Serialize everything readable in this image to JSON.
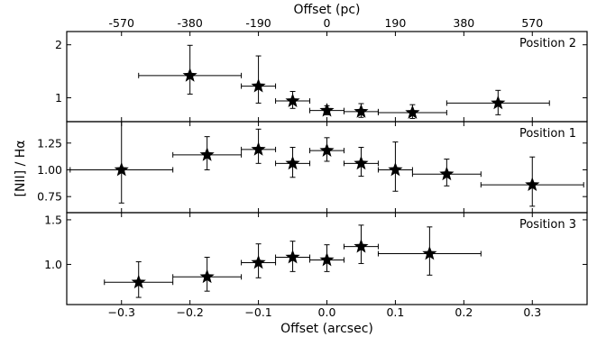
{
  "chart_data": {
    "type": "scatter",
    "xlabel": "Offset (arcsec)",
    "x2label": "Offset (pc)",
    "ylabel": "[NII] / Hα",
    "xlim": [
      -0.38,
      0.38
    ],
    "xticks": [
      -0.3,
      -0.2,
      -0.1,
      0.0,
      0.1,
      0.2,
      0.3
    ],
    "xtick_labels": [
      "−0.3",
      "−0.2",
      "−0.1",
      "0.0",
      "0.1",
      "0.2",
      "0.3"
    ],
    "x2ticks": [
      -570,
      -380,
      -190,
      0,
      190,
      380,
      570
    ],
    "x2tick_labels": [
      "-570",
      "-380",
      "-190",
      "0",
      "190",
      "380",
      "570"
    ],
    "x2_pc_per_arcsec": 1900,
    "panels": [
      {
        "label": "Position 2",
        "ylim": [
          0.55,
          2.25
        ],
        "yticks": [
          1,
          2
        ],
        "ytick_labels": [
          "1",
          "2"
        ],
        "points": [
          {
            "x": -0.2,
            "y": 1.42,
            "xerr": [
              0.075,
              0.075
            ],
            "yerr": [
              0.35,
              0.57
            ]
          },
          {
            "x": -0.1,
            "y": 1.22,
            "xerr": [
              0.025,
              0.025
            ],
            "yerr": [
              0.32,
              0.57
            ]
          },
          {
            "x": -0.05,
            "y": 0.94,
            "xerr": [
              0.025,
              0.025
            ],
            "yerr": [
              0.14,
              0.18
            ]
          },
          {
            "x": 0.0,
            "y": 0.76,
            "xerr": [
              0.025,
              0.025
            ],
            "yerr": [
              0.08,
              0.09
            ]
          },
          {
            "x": 0.05,
            "y": 0.74,
            "xerr": [
              0.025,
              0.025
            ],
            "yerr": [
              0.11,
              0.15
            ]
          },
          {
            "x": 0.125,
            "y": 0.72,
            "xerr": [
              0.05,
              0.05
            ],
            "yerr": [
              0.11,
              0.15
            ]
          },
          {
            "x": 0.25,
            "y": 0.9,
            "xerr": [
              0.075,
              0.075
            ],
            "yerr": [
              0.22,
              0.24
            ]
          }
        ]
      },
      {
        "label": "Position 1",
        "ylim": [
          0.6,
          1.45
        ],
        "yticks": [
          0.75,
          1.0,
          1.25
        ],
        "ytick_labels": [
          "0.75",
          "1.00",
          "1.25"
        ],
        "points": [
          {
            "x": -0.3,
            "y": 1.0,
            "xerr": [
              0.075,
              0.075
            ],
            "yerr": [
              0.31,
              0.45
            ]
          },
          {
            "x": -0.175,
            "y": 1.14,
            "xerr": [
              0.05,
              0.05
            ],
            "yerr": [
              0.14,
              0.17
            ]
          },
          {
            "x": -0.1,
            "y": 1.19,
            "xerr": [
              0.025,
              0.025
            ],
            "yerr": [
              0.13,
              0.19
            ]
          },
          {
            "x": -0.05,
            "y": 1.06,
            "xerr": [
              0.025,
              0.025
            ],
            "yerr": [
              0.13,
              0.15
            ]
          },
          {
            "x": 0.0,
            "y": 1.18,
            "xerr": [
              0.025,
              0.025
            ],
            "yerr": [
              0.1,
              0.12
            ]
          },
          {
            "x": 0.05,
            "y": 1.06,
            "xerr": [
              0.025,
              0.025
            ],
            "yerr": [
              0.12,
              0.15
            ]
          },
          {
            "x": 0.1,
            "y": 1.0,
            "xerr": [
              0.025,
              0.025
            ],
            "yerr": [
              0.2,
              0.26
            ]
          },
          {
            "x": 0.175,
            "y": 0.96,
            "xerr": [
              0.05,
              0.05
            ],
            "yerr": [
              0.11,
              0.14
            ]
          },
          {
            "x": 0.3,
            "y": 0.86,
            "xerr": [
              0.075,
              0.075
            ],
            "yerr": [
              0.2,
              0.26
            ]
          }
        ]
      },
      {
        "label": "Position 3",
        "ylim": [
          0.55,
          1.58
        ],
        "yticks": [
          1.0,
          1.5
        ],
        "ytick_labels": [
          "1.0",
          "1.5"
        ],
        "points": [
          {
            "x": -0.275,
            "y": 0.8,
            "xerr": [
              0.05,
              0.05
            ],
            "yerr": [
              0.17,
              0.23
            ]
          },
          {
            "x": -0.175,
            "y": 0.86,
            "xerr": [
              0.05,
              0.05
            ],
            "yerr": [
              0.16,
              0.22
            ]
          },
          {
            "x": -0.1,
            "y": 1.02,
            "xerr": [
              0.025,
              0.025
            ],
            "yerr": [
              0.17,
              0.21
            ]
          },
          {
            "x": -0.05,
            "y": 1.08,
            "xerr": [
              0.025,
              0.025
            ],
            "yerr": [
              0.16,
              0.18
            ]
          },
          {
            "x": 0.0,
            "y": 1.05,
            "xerr": [
              0.025,
              0.025
            ],
            "yerr": [
              0.13,
              0.17
            ]
          },
          {
            "x": 0.05,
            "y": 1.2,
            "xerr": [
              0.025,
              0.025
            ],
            "yerr": [
              0.19,
              0.24
            ]
          },
          {
            "x": 0.15,
            "y": 1.12,
            "xerr": [
              0.075,
              0.075
            ],
            "yerr": [
              0.24,
              0.3
            ]
          }
        ]
      }
    ]
  }
}
